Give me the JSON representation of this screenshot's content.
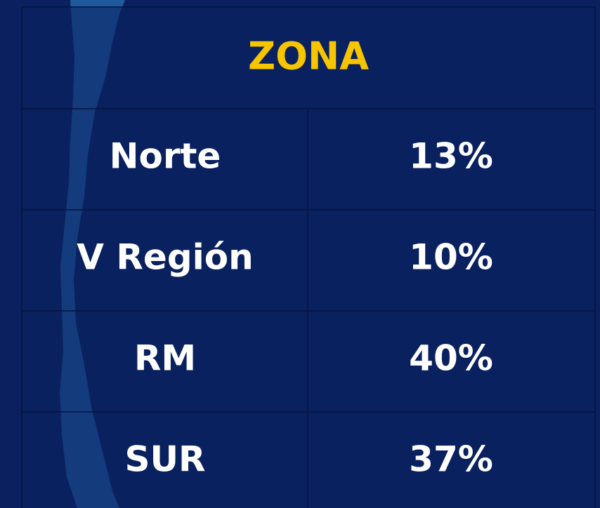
{
  "table": {
    "header": "ZONA",
    "rows": [
      [
        "Norte",
        "13%"
      ],
      [
        "V Región",
        "10%"
      ],
      [
        "RM",
        "40%"
      ],
      [
        "SUR",
        "37%"
      ]
    ]
  }
}
